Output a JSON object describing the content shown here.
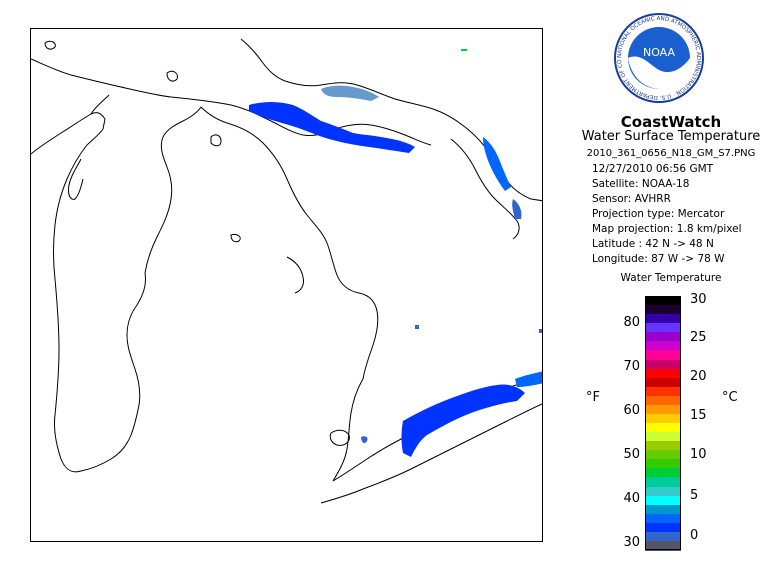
{
  "header": {
    "agency_logo_text": "NOAA",
    "logo_ring_text": "NATIONAL OCEANIC AND ATMOSPHERIC ADMINISTRATION · U.S. DEPARTMENT OF COMMERCE ·",
    "brand": "CoastWatch",
    "product": "Water Surface Temperature",
    "filename": "2010_361_0656_N18_GM_S7.PNG"
  },
  "metadata": {
    "datetime": "12/27/2010   06:56 GMT",
    "satellite": "Satellite: NOAA-18",
    "sensor": "Sensor: AVHRR",
    "projection_type": "Projection type:  Mercator",
    "map_projection": "Map projection: 1.8 km/pixel",
    "latitude": "Latitude : 42 N -> 48 N",
    "longitude": "Longitude: 87 W -> 78 W"
  },
  "legend": {
    "title": "Water Temperature",
    "unit_f": "°F",
    "unit_c": "°C",
    "fahrenheit_ticks": [
      "80",
      "70",
      "60",
      "50",
      "40",
      "30"
    ],
    "celsius_ticks": [
      "30",
      "25",
      "20",
      "15",
      "10",
      "5",
      "0"
    ],
    "colors_top_to_bottom": [
      "#000000",
      "#1a0033",
      "#3300aa",
      "#6633ff",
      "#9900cc",
      "#cc00cc",
      "#ff0099",
      "#cc0066",
      "#ff0000",
      "#cc0000",
      "#ff3300",
      "#ff6600",
      "#ff9900",
      "#ffcc00",
      "#ffff00",
      "#ccff33",
      "#99cc00",
      "#66cc00",
      "#33cc00",
      "#00cc33",
      "#00cc99",
      "#33cccc",
      "#00ffff",
      "#0099cc",
      "#0066ff",
      "#0033ff",
      "#3366cc",
      "#555566"
    ]
  },
  "map": {
    "land_color": "#ffffff",
    "coast_color": "#000000",
    "sst_colors": [
      "#0066ff",
      "#0033ff",
      "#3366cc",
      "#6699cc"
    ]
  }
}
